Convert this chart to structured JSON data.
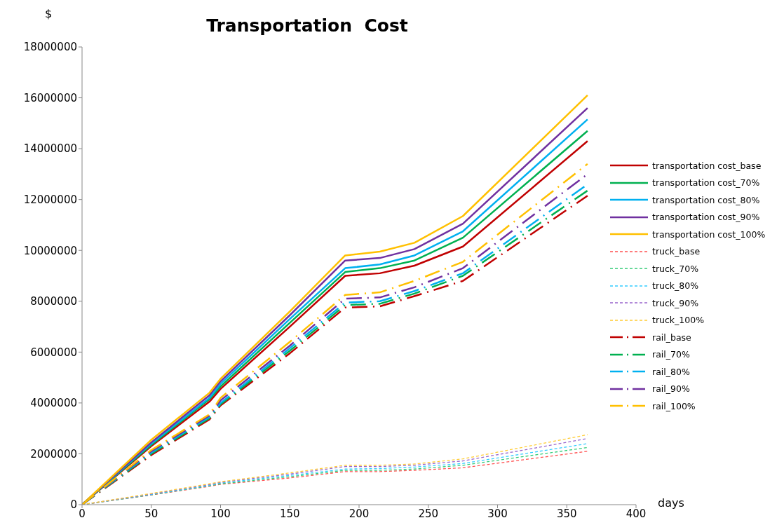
{
  "chart_data": {
    "type": "line",
    "title": "Transportation  Cost",
    "xlabel": "days",
    "ylabel": "$",
    "x": [
      0,
      50,
      92,
      100,
      150,
      190,
      215,
      240,
      275,
      365
    ],
    "xlim": [
      0,
      400
    ],
    "xticks": [
      0,
      50,
      100,
      150,
      200,
      250,
      300,
      350,
      400
    ],
    "ylim": [
      0,
      18000000
    ],
    "yticks": [
      0,
      2000000,
      4000000,
      6000000,
      8000000,
      10000000,
      12000000,
      14000000,
      16000000,
      18000000
    ],
    "grid": false,
    "legend": "right",
    "marker": "none",
    "series": [
      {
        "name": "transportation cost_base",
        "color": "#c00000",
        "line_style": "solid",
        "values": [
          0,
          2300000,
          4050000,
          4550000,
          7000000,
          9000000,
          9100000,
          9400000,
          10150000,
          14300000
        ]
      },
      {
        "name": "transportation cost_70%",
        "color": "#00b050",
        "line_style": "solid",
        "values": [
          0,
          2350000,
          4150000,
          4650000,
          7150000,
          9150000,
          9300000,
          9600000,
          10500000,
          14700000
        ]
      },
      {
        "name": "transportation cost_80%",
        "color": "#00b0f0",
        "line_style": "solid",
        "values": [
          0,
          2400000,
          4200000,
          4750000,
          7300000,
          9300000,
          9450000,
          9800000,
          10750000,
          15150000
        ]
      },
      {
        "name": "transportation cost_90%",
        "color": "#7030a0",
        "line_style": "solid",
        "values": [
          0,
          2450000,
          4300000,
          4850000,
          7450000,
          9600000,
          9700000,
          10050000,
          11050000,
          15600000
        ]
      },
      {
        "name": "transportation cost_100%",
        "color": "#ffc000",
        "line_style": "solid",
        "values": [
          0,
          2550000,
          4400000,
          4950000,
          7600000,
          9800000,
          9950000,
          10300000,
          11350000,
          16100000
        ]
      },
      {
        "name": "truck_base",
        "color": "#ff5050",
        "line_style": "dashed",
        "values": [
          0,
          380000,
          720000,
          800000,
          1050000,
          1300000,
          1300000,
          1350000,
          1450000,
          2100000
        ]
      },
      {
        "name": "truck_70%",
        "color": "#33cc77",
        "line_style": "dashed",
        "values": [
          0,
          390000,
          740000,
          820000,
          1100000,
          1350000,
          1350000,
          1400000,
          1550000,
          2250000
        ]
      },
      {
        "name": "truck_80%",
        "color": "#33ccff",
        "line_style": "dashed",
        "values": [
          0,
          400000,
          760000,
          850000,
          1150000,
          1400000,
          1420000,
          1480000,
          1620000,
          2400000
        ]
      },
      {
        "name": "truck_90%",
        "color": "#9966cc",
        "line_style": "dashed",
        "values": [
          0,
          420000,
          790000,
          880000,
          1200000,
          1500000,
          1500000,
          1550000,
          1720000,
          2600000
        ]
      },
      {
        "name": "truck_100%",
        "color": "#ffcc33",
        "line_style": "dashed",
        "values": [
          0,
          440000,
          820000,
          900000,
          1250000,
          1550000,
          1550000,
          1600000,
          1800000,
          2750000
        ]
      },
      {
        "name": "rail_base",
        "color": "#c00000",
        "line_style": "dashdot",
        "values": [
          0,
          1950000,
          3350000,
          3900000,
          5950000,
          7750000,
          7800000,
          8200000,
          8800000,
          12150000
        ]
      },
      {
        "name": "rail_70%",
        "color": "#00b050",
        "line_style": "dashdot",
        "values": [
          0,
          2000000,
          3400000,
          3950000,
          6050000,
          7850000,
          7900000,
          8300000,
          9000000,
          12350000
        ]
      },
      {
        "name": "rail_80%",
        "color": "#00b0f0",
        "line_style": "dashdot",
        "values": [
          0,
          2050000,
          3450000,
          4000000,
          6150000,
          7950000,
          8000000,
          8400000,
          9100000,
          12600000
        ]
      },
      {
        "name": "rail_90%",
        "color": "#7030a0",
        "line_style": "dashdot",
        "values": [
          0,
          2100000,
          3500000,
          4100000,
          6250000,
          8100000,
          8150000,
          8550000,
          9300000,
          13000000
        ]
      },
      {
        "name": "rail_100%",
        "color": "#ffc000",
        "line_style": "dashdot",
        "values": [
          0,
          2150000,
          3550000,
          4200000,
          6400000,
          8250000,
          8350000,
          8800000,
          9550000,
          13400000
        ]
      }
    ]
  }
}
